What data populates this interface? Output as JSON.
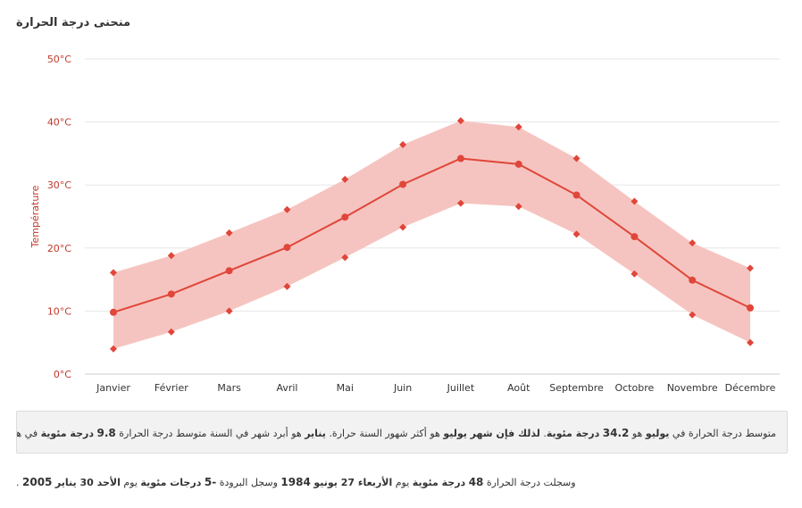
{
  "page": {
    "title": "منحنى درجة الحرارة"
  },
  "summary": {
    "p1": "متوسط درجة الحرارة في",
    "b1": "يوليو",
    "p2": "هو",
    "b2": "34.2",
    "b3": "درجة مئوية",
    "p3": ".",
    "b4": "لذلك فإن شهر يوليو",
    "p4": "هو أكثر شهور السنة حرارة.",
    "b5": "يناير",
    "p5": "هو أبرد شهر في السنة متوسط درجة الحرارة",
    "b6": "9.8",
    "b7": "درجة مئوية",
    "p6": "في هذا الوقت."
  },
  "records": {
    "p1": "وسجلت درجة الحرارة",
    "b1": "48",
    "b2": "درجة مئوية",
    "p2": "يوم",
    "b3": "الأربعاء 27 يونيو",
    "b4": "1984",
    "p3": "وسجل البرودة",
    "b5": "-5",
    "b6": "درجات مئوية",
    "p4": "يوم",
    "b7": "الأحد 30 يناير",
    "b8": "2005",
    "p5": "."
  },
  "chart_data": {
    "type": "area",
    "title": "",
    "xlabel": "",
    "ylabel": "Température",
    "categories": [
      "Janvier",
      "Février",
      "Mars",
      "Avril",
      "Mai",
      "Juin",
      "Juillet",
      "Août",
      "Septembre",
      "Octobre",
      "Novembre",
      "Décembre"
    ],
    "ylim": [
      0,
      50
    ],
    "yticks": [
      0,
      10,
      20,
      30,
      40,
      50
    ],
    "ytick_labels": [
      "0°C",
      "10°C",
      "20°C",
      "30°C",
      "40°C",
      "50°C"
    ],
    "grid": true,
    "legend": "none",
    "series": [
      {
        "role": "max",
        "values": [
          16.1,
          18.8,
          22.4,
          26.1,
          30.9,
          36.4,
          40.2,
          39.2,
          34.2,
          27.4,
          20.8,
          16.8
        ]
      },
      {
        "role": "mean",
        "values": [
          9.8,
          12.7,
          16.4,
          20.1,
          24.9,
          30.1,
          34.2,
          33.3,
          28.4,
          21.8,
          14.9,
          10.5
        ]
      },
      {
        "role": "min",
        "values": [
          4.0,
          6.7,
          10.0,
          13.9,
          18.5,
          23.3,
          27.1,
          26.6,
          22.2,
          15.9,
          9.4,
          5.0
        ]
      }
    ],
    "colors": {
      "band": "#f6c4c0",
      "line": "#e0463a",
      "grid": "#e6e6e6",
      "axis_text": "#c0392b"
    }
  }
}
